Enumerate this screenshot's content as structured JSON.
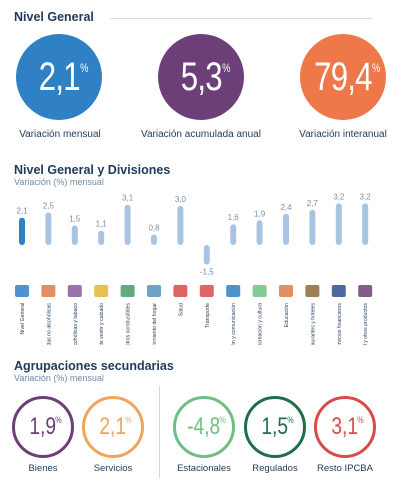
{
  "top": {
    "title": "Nivel General",
    "items": [
      {
        "value": "2,1",
        "pct": "%",
        "label": "Variación mensual",
        "color": "#2f80c5"
      },
      {
        "value": "5,3",
        "pct": "%",
        "label": "Variación acumulada anual",
        "color": "#6d3f78"
      },
      {
        "value": "79,4",
        "pct": "%",
        "label": "Variación interanual",
        "color": "#ee7849"
      }
    ]
  },
  "divisions": {
    "title": "Nivel General y Divisiones",
    "subtitle": "Variación (%) mensual"
  },
  "chart_data": {
    "type": "bar",
    "title": "Nivel General y Divisiones",
    "ylabel": "Variación (%) mensual",
    "categories": [
      "Nivel General",
      "Alimentos y bebidas no alcohólicas",
      "Bebidas alcohólicas y tabaco",
      "Prendas de vestir y calzado",
      "Vivienda, agua, electricidad, gas y otros combustibles",
      "Equipamiento y mantenimiento del hogar",
      "Salud",
      "Transporte",
      "Información y comunicación",
      "Recreación y cultura",
      "Educación",
      "Restaurantes y hoteles",
      "Seguros y servicios financieros",
      "Cuidado personal, protección social y otros productos"
    ],
    "values": [
      2.1,
      2.5,
      1.5,
      1.1,
      3.1,
      0.8,
      3.0,
      -1.5,
      1.6,
      1.9,
      2.4,
      2.7,
      3.2,
      3.2
    ],
    "value_labels": [
      "2,1",
      "2,5",
      "1,5",
      "1,1",
      "3,1",
      "0,8",
      "3,0",
      "-1,5",
      "1,6",
      "1,9",
      "2,4",
      "2,7",
      "3,2",
      "3,2"
    ],
    "colors": {
      "highlight": "#2f80c5",
      "bar": "#a9c4e3",
      "label": "#7a8ea3"
    }
  },
  "secondary": {
    "title": "Agrupaciones secundarias",
    "subtitle": "Variación (%) mensual",
    "items": [
      {
        "value": "1,9",
        "pct": "%",
        "label": "Bienes",
        "color": "#6d3f78"
      },
      {
        "value": "2,1",
        "pct": "%",
        "label": "Servicios",
        "color": "#f0a65a"
      },
      {
        "value": "-4,8",
        "pct": "%",
        "label": "Estacionales",
        "color": "#6fbf84"
      },
      {
        "value": "1,5",
        "pct": "%",
        "label": "Regulados",
        "color": "#1f6e4a"
      },
      {
        "value": "3,1",
        "pct": "%",
        "label": "Resto IPCBA",
        "color": "#d94a4a"
      }
    ]
  }
}
